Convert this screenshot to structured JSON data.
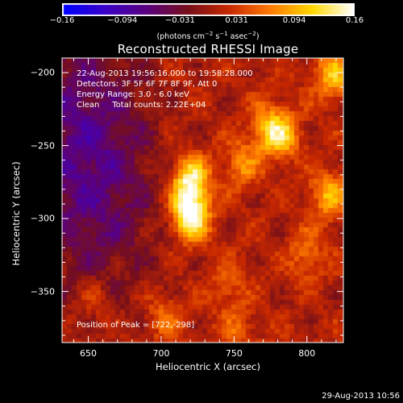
{
  "chart_data": {
    "type": "heatmap",
    "title": "Reconstructed RHESSI Image",
    "xlabel": "Heliocentric X (arcsec)",
    "ylabel": "Heliocentric Y (arcsec)",
    "xlim": [
      632,
      825
    ],
    "ylim": [
      -385,
      -190
    ],
    "xticks": [
      650,
      700,
      750,
      800
    ],
    "xtick_labels": [
      "650",
      "700",
      "750",
      "800"
    ],
    "yticks": [
      -200,
      -250,
      -300,
      -350
    ],
    "ytick_labels": [
      "−200",
      "−250",
      "−300",
      "−350"
    ],
    "colorbar": {
      "range": [
        -0.16,
        0.16
      ],
      "ticks": [
        -0.16,
        -0.094,
        -0.031,
        0.031,
        0.094,
        0.16
      ],
      "tick_labels": [
        "−0.16",
        "−0.094",
        "−0.031",
        "0.031",
        "0.094",
        "0.16"
      ],
      "unit_main": "(photons cm",
      "unit_exp1": "−2",
      "unit_mid": " s",
      "unit_exp2": "−1",
      "unit_mid2": " asec",
      "unit_exp3": "−2",
      "unit_end": ")",
      "colors": [
        "#0000ff",
        "#3a00c8",
        "#5a0080",
        "#760f1a",
        "#c82800",
        "#ff7a00",
        "#ffd800",
        "#ffffff"
      ]
    },
    "grid": false,
    "peak": [
      722,
      -298
    ],
    "sources": [
      {
        "x": 720,
        "y": -274,
        "intensity": 0.13
      },
      {
        "x": 720,
        "y": -298,
        "intensity": 0.16
      },
      {
        "x": 783,
        "y": -243,
        "intensity": 0.08
      },
      {
        "x": 773,
        "y": -238,
        "intensity": 0.07
      },
      {
        "x": 818,
        "y": -202,
        "intensity": 0.09
      },
      {
        "x": 815,
        "y": -284,
        "intensity": 0.08
      },
      {
        "x": 755,
        "y": -263,
        "intensity": 0.06
      },
      {
        "x": 800,
        "y": -325,
        "intensity": 0.05
      },
      {
        "x": 703,
        "y": -368,
        "intensity": 0.05
      },
      {
        "x": 753,
        "y": -378,
        "intensity": 0.04
      },
      {
        "x": 655,
        "y": -355,
        "intensity": 0.03
      },
      {
        "x": 745,
        "y": -345,
        "intensity": 0.04
      }
    ],
    "negative_regions": [
      {
        "x": 642,
        "y": -255,
        "intensity": -0.05
      },
      {
        "x": 660,
        "y": -300,
        "intensity": -0.04
      },
      {
        "x": 650,
        "y": -200,
        "intensity": -0.03
      }
    ],
    "background": 0.01
  },
  "annotations": {
    "time": "22-Aug-2013 19:56:16.000 to 19:58:28.000",
    "detectors": "Detectors: 3F 5F 6F 7F 8F 9F, Att 0",
    "energy": "Energy Range: 3.0 - 6.0 keV",
    "clean": "Clean     Total counts: 2.22E+04",
    "peak": "Position of Peak = [722,-298]"
  },
  "timestamp": "29-Aug-2013 10:56"
}
